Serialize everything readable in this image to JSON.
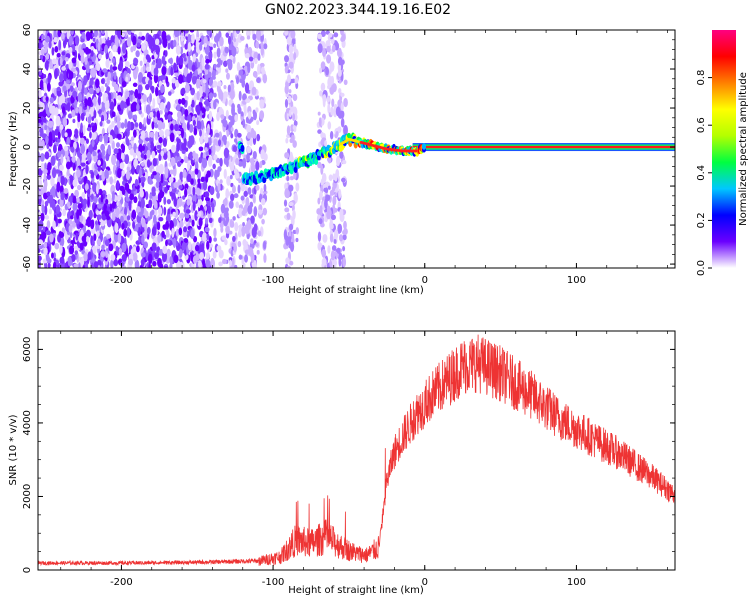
{
  "figure": {
    "title": "GN02.2023.344.19.16.E02"
  },
  "chart_data": [
    {
      "type": "heatmap",
      "xlabel": "Height of straight line (km)",
      "ylabel": "Frequency (Hz)",
      "xlim": [
        -255,
        165
      ],
      "ylim": [
        -62,
        60
      ],
      "xticks": [
        -200,
        -100,
        0,
        100
      ],
      "yticks": [
        -60,
        -40,
        -20,
        0,
        20,
        40,
        60
      ],
      "ridge": [
        [
          -120,
          -17
        ],
        [
          -100,
          -14
        ],
        [
          -80,
          -8
        ],
        [
          -65,
          -3
        ],
        [
          -50,
          4
        ],
        [
          -40,
          2
        ],
        [
          -25,
          -1
        ],
        [
          -15,
          -2
        ],
        [
          -5,
          -2
        ],
        [
          0,
          0
        ],
        [
          165,
          0
        ]
      ],
      "colorbar": {
        "label": "Normalized spectral amplitude",
        "ticks": [
          0.0,
          0.2,
          0.4,
          0.6,
          0.8
        ],
        "range": [
          0,
          1
        ],
        "colors": [
          "#ffffff",
          "#6a00ff",
          "#0000ff",
          "#00c8ff",
          "#00ff40",
          "#b4ff00",
          "#ffff00",
          "#ff8000",
          "#ff0000",
          "#ff0080"
        ]
      }
    },
    {
      "type": "line",
      "xlabel": "Height of straight line (km)",
      "ylabel": "SNR (10 * v/v)",
      "xlim": [
        -255,
        165
      ],
      "ylim": [
        0,
        6500
      ],
      "xticks": [
        -200,
        -100,
        0,
        100
      ],
      "yticks": [
        0,
        2000,
        4000,
        6000
      ],
      "color": "#ee3333",
      "series_envelope": {
        "x": [
          -255,
          -200,
          -150,
          -110,
          -95,
          -85,
          -75,
          -65,
          -55,
          -45,
          -38,
          -30,
          -25,
          -20,
          -15,
          -5,
          5,
          15,
          25,
          35,
          50,
          70,
          90,
          110,
          130,
          150,
          165
        ],
        "y": [
          200,
          200,
          220,
          260,
          400,
          900,
          800,
          1000,
          700,
          500,
          450,
          700,
          2500,
          3300,
          3700,
          4400,
          4900,
          5300,
          5700,
          5800,
          5500,
          4900,
          4200,
          3700,
          3200,
          2600,
          2100
        ]
      }
    }
  ]
}
